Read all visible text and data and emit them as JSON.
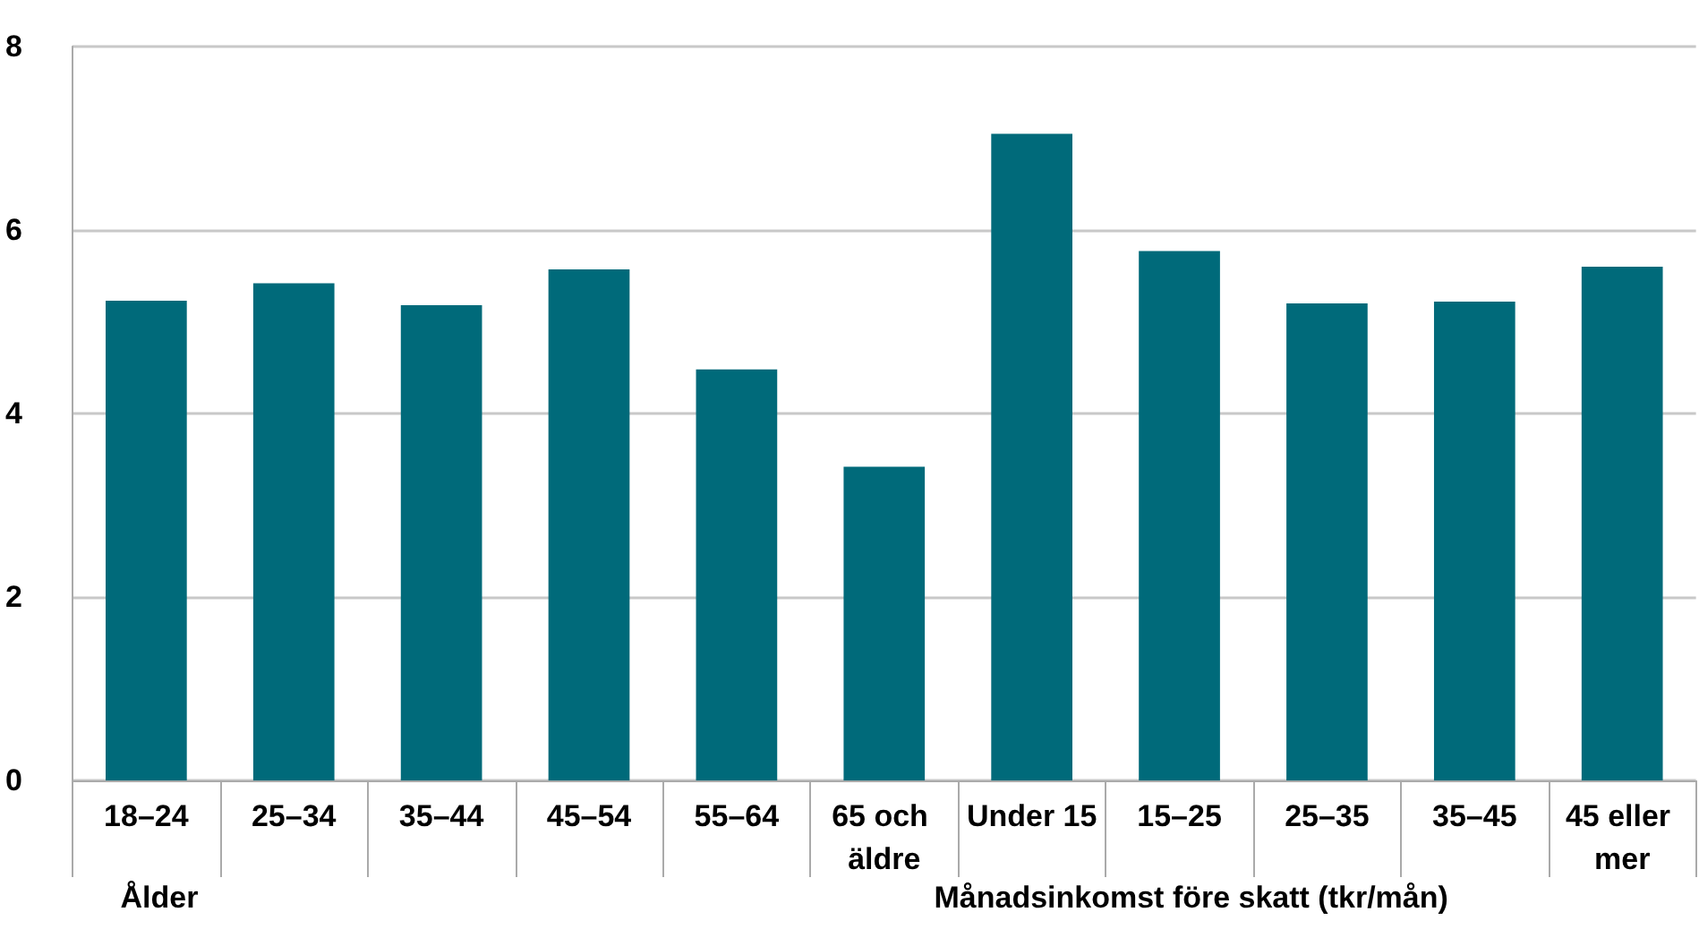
{
  "chart_data": {
    "type": "bar",
    "categories": [
      "18–24",
      "25–34",
      "35–44",
      "45–54",
      "55–64",
      "65 och äldre",
      "Under 15",
      "15–25",
      "25–35",
      "35–45",
      "45 eller mer"
    ],
    "values": [
      5.23,
      5.42,
      5.18,
      5.57,
      4.48,
      3.42,
      7.05,
      5.77,
      5.2,
      5.22,
      5.6
    ],
    "color": "#006a7a",
    "ylim": [
      0,
      8
    ],
    "yticks": [
      0,
      2,
      4,
      6,
      8
    ],
    "grid": "y",
    "annotations": [
      "Ålder",
      "Månadsinkomst före skatt (tkr/mån)"
    ]
  }
}
